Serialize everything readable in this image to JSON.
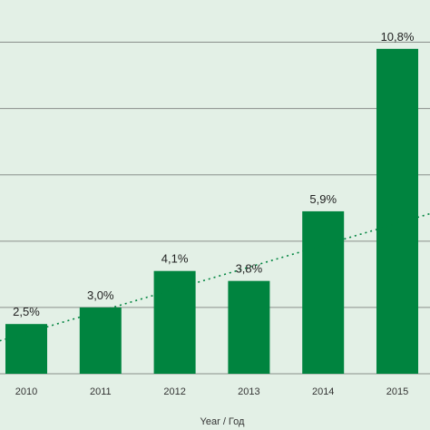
{
  "chart_data": {
    "type": "bar",
    "categories": [
      "2010",
      "2011",
      "2012",
      "2013",
      "2014",
      "2015"
    ],
    "values": [
      2.5,
      3.0,
      4.1,
      3.8,
      5.9,
      10.8
    ],
    "value_labels": [
      "2,5%",
      "3,0%",
      "4,1%",
      "3,8%",
      "5,9%",
      "10,8%"
    ],
    "xlabel": "Year / Год",
    "ylabel": "",
    "ylim": [
      1.0,
      12.0
    ],
    "grid": true,
    "bar_color": "#00843f",
    "background": "#e3f0e6",
    "trendline": {
      "style": "dotted",
      "from": [
        2009.5,
        1.9
      ],
      "to": [
        2015.7,
        6.0
      ]
    }
  }
}
